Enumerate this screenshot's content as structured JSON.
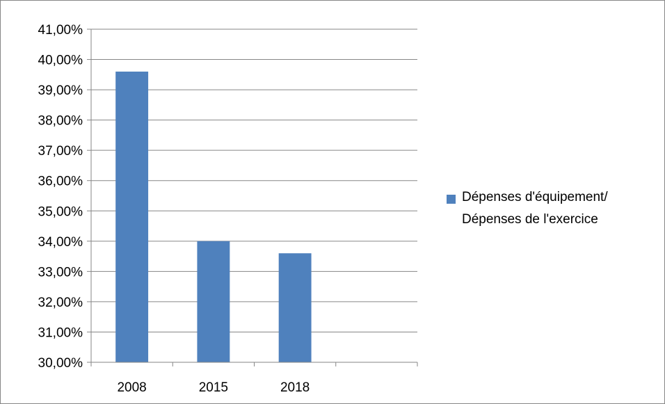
{
  "chart_data": {
    "type": "bar",
    "categories": [
      "2008",
      "2015",
      "2018",
      ""
    ],
    "series": [
      {
        "name": "Dépenses d'équipement/ Dépenses de l'exercice",
        "name_lines": [
          "Dépenses d'équipement/",
          "Dépenses de l'exercice"
        ],
        "values": [
          39.6,
          34.0,
          33.6,
          null
        ],
        "color": "#4F81BD"
      }
    ],
    "yticks": [
      "30,00%",
      "31,00%",
      "32,00%",
      "33,00%",
      "34,00%",
      "35,00%",
      "36,00%",
      "37,00%",
      "38,00%",
      "39,00%",
      "40,00%",
      "41,00%"
    ],
    "ylim": [
      30,
      41
    ],
    "ylabel": "",
    "xlabel": "",
    "grid": true,
    "legend": "right"
  }
}
